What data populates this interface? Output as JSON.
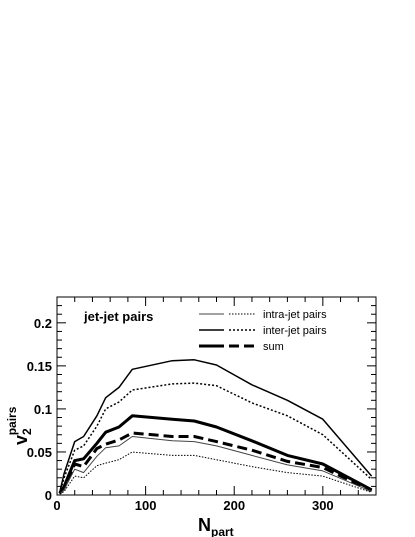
{
  "chart_data": {
    "type": "line",
    "title": "",
    "annotation": "jet-jet pairs",
    "xlabel": {
      "main": "N",
      "sub": "part"
    },
    "ylabel": {
      "main": "v",
      "sub": "2",
      "sup": "pairs"
    },
    "xlim": [
      0,
      360
    ],
    "ylim": [
      0,
      0.23
    ],
    "x_ticks": [
      0,
      100,
      200,
      300
    ],
    "x_tick_labels": [
      "0",
      "100",
      "200",
      "300"
    ],
    "y_ticks": [
      0,
      0.05,
      0.1,
      0.15,
      0.2
    ],
    "y_tick_labels": [
      "0",
      "0.05",
      "0.1",
      "0.15",
      "0.2"
    ],
    "grid": false,
    "legend_position": "top-right",
    "legend": [
      {
        "label": "intra-jet pairs",
        "styles": [
          "thin-solid",
          "thin-dotted"
        ]
      },
      {
        "label": "inter-jet pairs",
        "styles": [
          "solid",
          "dotted"
        ]
      },
      {
        "label": "sum",
        "styles": [
          "thick-solid",
          "thick-dashed"
        ]
      }
    ],
    "x": [
      3,
      8,
      20,
      30,
      45,
      55,
      70,
      85,
      130,
      155,
      180,
      220,
      260,
      300,
      355
    ],
    "series": [
      {
        "style": "solid",
        "values": [
          0.003,
          0.025,
          0.062,
          0.068,
          0.092,
          0.113,
          0.125,
          0.146,
          0.156,
          0.157,
          0.151,
          0.128,
          0.11,
          0.088,
          0.022
        ]
      },
      {
        "style": "dotted",
        "values": [
          0.002,
          0.02,
          0.052,
          0.057,
          0.08,
          0.1,
          0.108,
          0.122,
          0.129,
          0.13,
          0.127,
          0.107,
          0.092,
          0.07,
          0.018
        ]
      },
      {
        "style": "thick-solid",
        "values": [
          0.002,
          0.01,
          0.04,
          0.042,
          0.06,
          0.073,
          0.079,
          0.092,
          0.088,
          0.086,
          0.079,
          0.063,
          0.046,
          0.036,
          0.006
        ]
      },
      {
        "style": "thick-dashed",
        "values": [
          0.002,
          0.008,
          0.036,
          0.033,
          0.054,
          0.059,
          0.064,
          0.072,
          0.068,
          0.068,
          0.062,
          0.052,
          0.039,
          0.032,
          0.005
        ]
      },
      {
        "style": "thin-solid",
        "values": [
          0.001,
          0.006,
          0.03,
          0.026,
          0.045,
          0.055,
          0.057,
          0.068,
          0.063,
          0.062,
          0.057,
          0.046,
          0.035,
          0.028,
          0.004
        ]
      },
      {
        "style": "thin-dotted",
        "values": [
          0.001,
          0.004,
          0.022,
          0.02,
          0.034,
          0.037,
          0.041,
          0.05,
          0.046,
          0.046,
          0.041,
          0.033,
          0.026,
          0.022,
          0.003
        ]
      }
    ]
  }
}
